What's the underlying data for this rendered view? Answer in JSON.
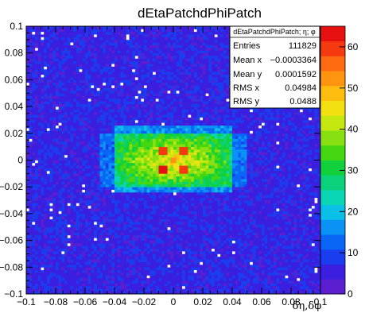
{
  "chart_data": {
    "type": "heatmap",
    "title": "dEtaPatchdPhiPatch",
    "xlabel": "δη,δφ",
    "ylabel": "",
    "xlim": [
      -0.1,
      0.1
    ],
    "ylim": [
      -0.1,
      0.1
    ],
    "x_ticks": [
      "−0.1",
      "−0.08",
      "−0.06",
      "−0.04",
      "−0.02",
      "0",
      "0.02",
      "0.04",
      "0.06",
      "0.08",
      "0.1"
    ],
    "y_ticks": [
      "−0.1",
      "−0.08",
      "−0.06",
      "−0.04",
      "−0.02",
      "0",
      "0.02",
      "0.04",
      "0.06",
      "0.08",
      "0.1"
    ],
    "x_tick_values": [
      -0.1,
      -0.08,
      -0.06,
      -0.04,
      -0.02,
      0,
      0.02,
      0.04,
      0.06,
      0.08,
      0.1
    ],
    "y_tick_values": [
      -0.1,
      -0.08,
      -0.06,
      -0.04,
      -0.02,
      0,
      0.02,
      0.04,
      0.06,
      0.08,
      0.1
    ],
    "zlim": [
      0,
      65
    ],
    "z_ticks": [
      "0",
      "10",
      "20",
      "30",
      "40",
      "50",
      "60"
    ],
    "z_tick_values": [
      0,
      10,
      20,
      30,
      40,
      50,
      60
    ],
    "bins": [
      100,
      100
    ],
    "background_level": 6,
    "peak_region": {
      "x_range": [
        -0.04,
        0.04
      ],
      "y_range": [
        -0.02,
        0.02
      ],
      "level_range": [
        25,
        45
      ]
    },
    "hot_spots": [
      {
        "x": -0.007,
        "y": 0.007,
        "level": 58
      },
      {
        "x": 0.007,
        "y": 0.007,
        "level": 60
      },
      {
        "x": -0.007,
        "y": -0.007,
        "level": 62
      },
      {
        "x": 0.007,
        "y": -0.007,
        "level": 58
      },
      {
        "x": 0.0,
        "y": 0.0,
        "level": 52
      }
    ],
    "palette": [
      "#ffffff",
      "#5b1fd1",
      "#3a1fe0",
      "#1a3df0",
      "#0a66f5",
      "#0a93f5",
      "#0ac0e6",
      "#0ad6b5",
      "#0ad17a",
      "#10d13c",
      "#45d810",
      "#88e010",
      "#c4e810",
      "#f2e010",
      "#ffbd10",
      "#ff9410",
      "#ff6a10",
      "#f53a10",
      "#e61010"
    ]
  },
  "stats_box": {
    "header": "dEtaPatchdPhiPatch; η; φ",
    "rows": [
      {
        "label": "Entries",
        "value": "111829"
      },
      {
        "label": "Mean x",
        "value": "−0.0003364"
      },
      {
        "label": "Mean y",
        "value": "0.0001592"
      },
      {
        "label": "RMS x",
        "value": "0.04984"
      },
      {
        "label": "RMS y",
        "value": "0.0488"
      }
    ]
  }
}
